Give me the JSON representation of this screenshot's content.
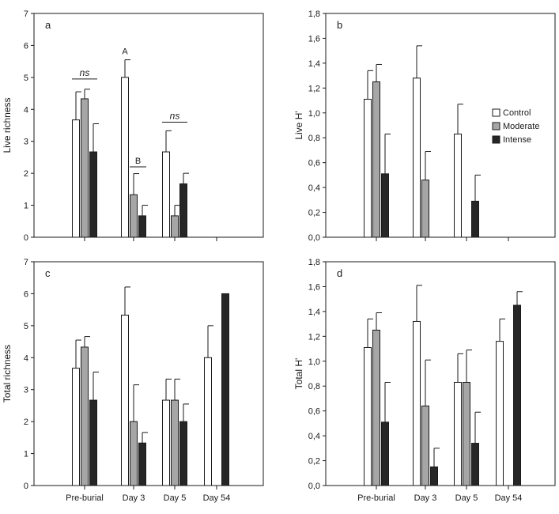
{
  "colors": {
    "Control": "#ffffff",
    "Moderate": "#a6a6a6",
    "Intense": "#262626"
  },
  "chart_data": [
    {
      "panel": "a",
      "type": "bar",
      "ylabel": "Live richness",
      "ylim": [
        0,
        7
      ],
      "yticks": [
        "0",
        "1",
        "2",
        "3",
        "4",
        "5",
        "6",
        "7"
      ],
      "categories": [
        "Pre-burial",
        "Day 3",
        "Day 5",
        "Day 54"
      ],
      "show_category_labels": false,
      "series": [
        {
          "name": "Control",
          "values": [
            3.67,
            5.0,
            2.67,
            null
          ],
          "errors": [
            0.88,
            0.55,
            0.66,
            null
          ]
        },
        {
          "name": "Moderate",
          "values": [
            4.33,
            1.33,
            0.67,
            null
          ],
          "errors": [
            0.3,
            0.66,
            0.33,
            null
          ]
        },
        {
          "name": "Intense",
          "values": [
            2.67,
            0.67,
            1.67,
            null
          ],
          "errors": [
            0.88,
            0.33,
            0.33,
            null
          ]
        }
      ],
      "annotations": [
        {
          "text": "ns",
          "category": 0,
          "y": 4.95,
          "type": "bracket",
          "from_series": 0,
          "to_series": 2
        },
        {
          "text": "A",
          "category": 1,
          "series": 0,
          "y": 5.72,
          "type": "label"
        },
        {
          "text": "B",
          "category": 1,
          "y": 2.2,
          "type": "bracket",
          "from_series": 1,
          "to_series": 2
        },
        {
          "text": "ns",
          "category": 2,
          "y": 3.6,
          "type": "bracket",
          "from_series": 0,
          "to_series": 2
        }
      ]
    },
    {
      "panel": "b",
      "type": "bar",
      "ylabel": "Live H'",
      "ylim": [
        0,
        1.8
      ],
      "yticks": [
        "0,0",
        "0,2",
        "0,4",
        "0,6",
        "0,8",
        "1,0",
        "1,2",
        "1,4",
        "1,6",
        "1,8"
      ],
      "categories": [
        "Pre-burial",
        "Day 3",
        "Day 5",
        "Day 54"
      ],
      "show_category_labels": false,
      "legend": {
        "position": "right",
        "entries": [
          "Control",
          "Moderate",
          "Intense"
        ]
      },
      "series": [
        {
          "name": "Control",
          "values": [
            1.11,
            1.28,
            0.83,
            null
          ],
          "errors": [
            0.23,
            0.26,
            0.24,
            null
          ]
        },
        {
          "name": "Moderate",
          "values": [
            1.25,
            0.46,
            0.0,
            null
          ],
          "errors": [
            0.14,
            0.23,
            0.0,
            null
          ]
        },
        {
          "name": "Intense",
          "values": [
            0.51,
            0.0,
            0.29,
            null
          ],
          "errors": [
            0.32,
            0.0,
            0.21,
            null
          ]
        }
      ]
    },
    {
      "panel": "c",
      "type": "bar",
      "ylabel": "Total richness",
      "ylim": [
        0,
        7
      ],
      "yticks": [
        "0",
        "1",
        "2",
        "3",
        "4",
        "5",
        "6",
        "7"
      ],
      "categories": [
        "Pre-burial",
        "Day 3",
        "Day 5",
        "Day 54"
      ],
      "show_category_labels": true,
      "series": [
        {
          "name": "Control",
          "values": [
            3.67,
            5.33,
            2.67,
            4.0
          ],
          "errors": [
            0.88,
            0.88,
            0.66,
            1.0
          ]
        },
        {
          "name": "Moderate",
          "values": [
            4.33,
            2.0,
            2.67,
            0.0
          ],
          "errors": [
            0.33,
            1.15,
            0.66,
            0.0
          ]
        },
        {
          "name": "Intense",
          "values": [
            2.67,
            1.33,
            2.0,
            6.0
          ],
          "errors": [
            0.88,
            0.33,
            0.55,
            0.0
          ]
        }
      ]
    },
    {
      "panel": "d",
      "type": "bar",
      "ylabel": "Total H'",
      "ylim": [
        0,
        1.8
      ],
      "yticks": [
        "0,0",
        "0,2",
        "0,4",
        "0,6",
        "0,8",
        "1,0",
        "1,2",
        "1,4",
        "1,6",
        "1,8"
      ],
      "categories": [
        "Pre-burial",
        "Day 3",
        "Day 5",
        "Day 54"
      ],
      "show_category_labels": true,
      "series": [
        {
          "name": "Control",
          "values": [
            1.11,
            1.32,
            0.83,
            1.16
          ],
          "errors": [
            0.23,
            0.29,
            0.23,
            0.18
          ]
        },
        {
          "name": "Moderate",
          "values": [
            1.25,
            0.64,
            0.83,
            0.0
          ],
          "errors": [
            0.14,
            0.37,
            0.26,
            0.0
          ]
        },
        {
          "name": "Intense",
          "values": [
            0.51,
            0.15,
            0.34,
            1.45
          ],
          "errors": [
            0.32,
            0.15,
            0.25,
            0.11
          ]
        }
      ]
    }
  ]
}
